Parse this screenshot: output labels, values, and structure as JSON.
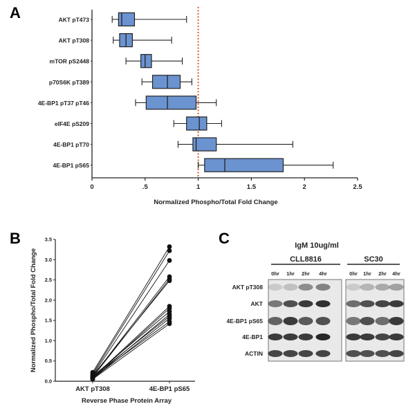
{
  "panels": {
    "a": "A",
    "b": "B",
    "c": "C"
  },
  "chart_data": [
    {
      "type": "box",
      "panel": "A",
      "xlabel": "Normalized Phospho/Total Fold Change",
      "ylabel": "",
      "xlim": [
        0,
        2.5
      ],
      "xticks": [
        "0",
        ".5",
        "1",
        "1.5",
        "2",
        "2.5"
      ],
      "xtick_values": [
        0,
        0.5,
        1,
        1.5,
        2,
        2.5
      ],
      "reference_line": {
        "x": 1.0,
        "style": "dotted",
        "color": "#e0562b"
      },
      "box_color": "#6b93d0",
      "categories": [
        "AKT pT473",
        "AKT pT308",
        "mTOR pS2448",
        "p70S6K pT389",
        "4E-BP1 pT37 pT46",
        "eIF4E pS209",
        "4E-BP1 pT70",
        "4E-BP1 pS65"
      ],
      "boxes": [
        {
          "label": "AKT pT473",
          "min": 0.19,
          "q1": 0.25,
          "median": 0.28,
          "q3": 0.4,
          "max": 0.89
        },
        {
          "label": "AKT pT308",
          "min": 0.2,
          "q1": 0.26,
          "median": 0.32,
          "q3": 0.38,
          "max": 0.75
        },
        {
          "label": "mTOR pS2448",
          "min": 0.32,
          "q1": 0.46,
          "median": 0.5,
          "q3": 0.56,
          "max": 0.85
        },
        {
          "label": "p70S6K pT389",
          "min": 0.47,
          "q1": 0.57,
          "median": 0.71,
          "q3": 0.83,
          "max": 0.94
        },
        {
          "label": "4E-BP1 pT37 pT46",
          "min": 0.41,
          "q1": 0.51,
          "median": 0.71,
          "q3": 0.98,
          "max": 1.17
        },
        {
          "label": "eIF4E pS209",
          "min": 0.77,
          "q1": 0.89,
          "median": 1.01,
          "q3": 1.08,
          "max": 1.22
        },
        {
          "label": "4E-BP1 pT70",
          "min": 0.81,
          "q1": 0.95,
          "median": 0.98,
          "q3": 1.17,
          "max": 1.89
        },
        {
          "label": "4E-BP1 pS65",
          "min": 1.0,
          "q1": 1.06,
          "median": 1.25,
          "q3": 1.8,
          "max": 2.27
        }
      ]
    },
    {
      "type": "line",
      "panel": "B",
      "xlabel": "Reverse Phase Protein Array",
      "ylabel": "Normalized Phospho/Total Fold Change",
      "categories": [
        "AKT pT308",
        "4E-BP1 pS65"
      ],
      "ylim": [
        0,
        3.5
      ],
      "yticks": [
        "0.0",
        "0.5",
        "1.0",
        "1.5",
        "2.0",
        "2.5",
        "3.0",
        "3.5"
      ],
      "ytick_values": [
        0,
        0.5,
        1.0,
        1.5,
        2.0,
        2.5,
        3.0,
        3.5
      ],
      "series": [
        {
          "values": [
            0.22,
            3.32
          ]
        },
        {
          "values": [
            0.18,
            3.22
          ]
        },
        {
          "values": [
            0.15,
            2.98
          ]
        },
        {
          "values": [
            0.12,
            2.58
          ]
        },
        {
          "values": [
            0.1,
            2.52
          ]
        },
        {
          "values": [
            0.14,
            2.48
          ]
        },
        {
          "values": [
            0.09,
            1.85
          ]
        },
        {
          "values": [
            0.08,
            1.8
          ]
        },
        {
          "values": [
            0.12,
            1.72
          ]
        },
        {
          "values": [
            0.07,
            1.65
          ]
        },
        {
          "values": [
            0.11,
            1.6
          ]
        },
        {
          "values": [
            0.06,
            1.55
          ]
        },
        {
          "values": [
            0.1,
            1.47
          ]
        },
        {
          "values": [
            0.05,
            1.42
          ]
        }
      ]
    }
  ],
  "blot": {
    "treatment": "IgM 10ug/ml",
    "groups": [
      {
        "name": "CLL8816",
        "times": [
          "0hr",
          "1hr",
          "2hr",
          "4hr"
        ]
      },
      {
        "name": "SC30",
        "times": [
          "0hr",
          "1hr",
          "2hr",
          "4hr"
        ]
      }
    ],
    "rows": [
      "AKT pT308",
      "AKT",
      "4E-BP1 pS65",
      "4E-BP1",
      "ACTIN"
    ]
  }
}
